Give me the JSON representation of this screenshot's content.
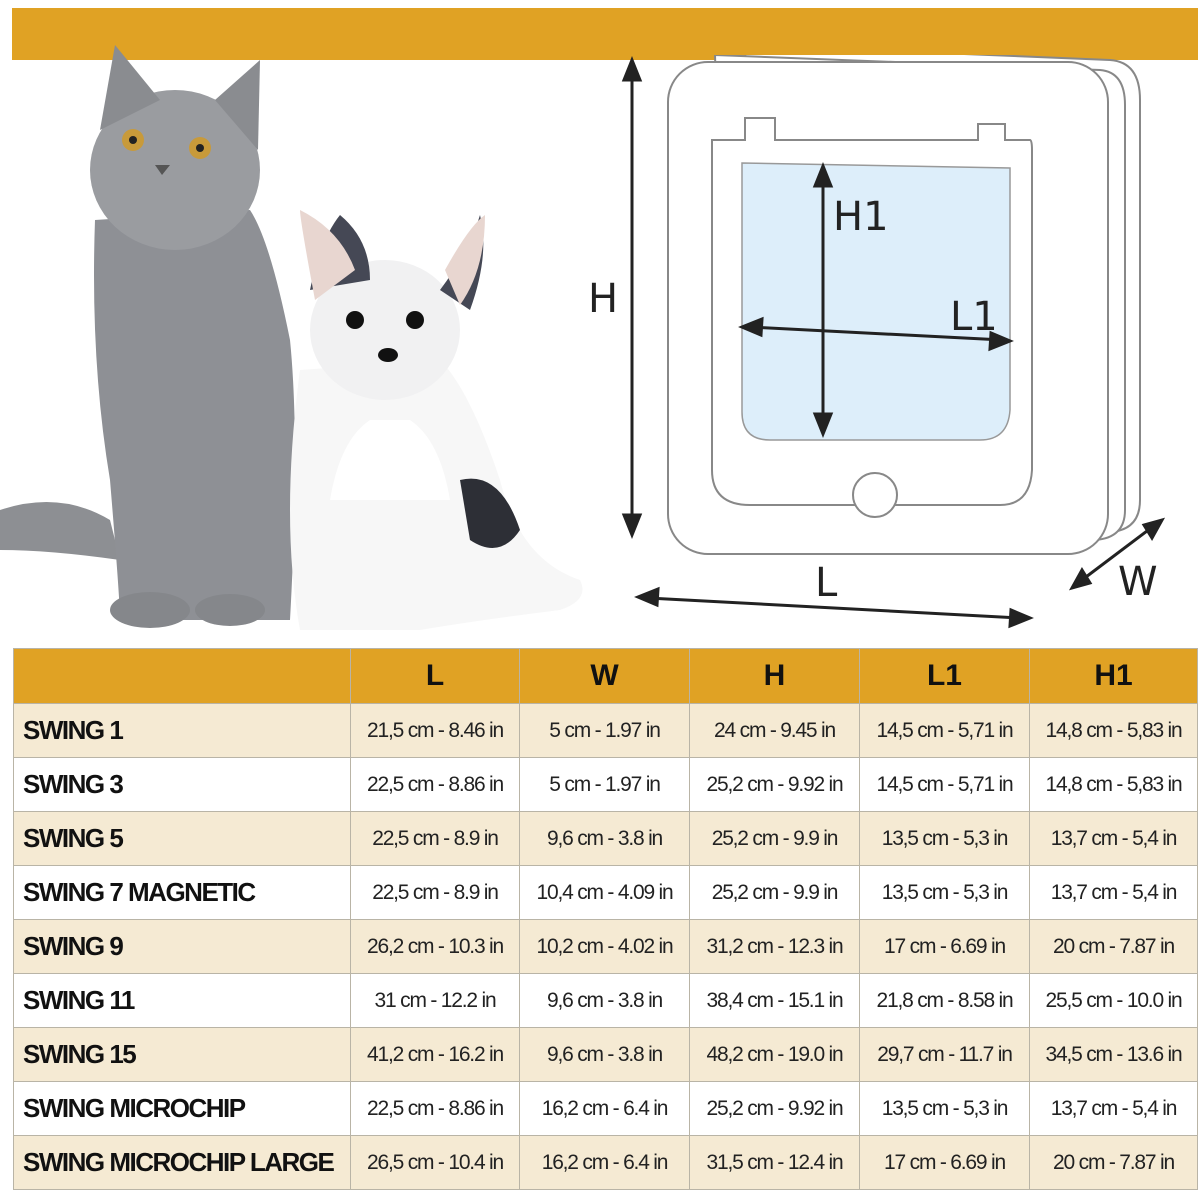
{
  "diagram": {
    "labels": {
      "height": "H",
      "length": "L",
      "width": "W",
      "inner_height": "H1",
      "inner_length": "L1"
    }
  },
  "colors": {
    "accent": "#E0A224",
    "row_alt": "#F5EAD3",
    "flap_window": "#DDEEFA"
  },
  "table": {
    "headers": [
      "",
      "L",
      "W",
      "H",
      "L1",
      "H1"
    ],
    "rows": [
      {
        "name": "SWING 1",
        "values": [
          "21,5 cm - 8.46 in",
          "5 cm - 1.97 in",
          "24 cm - 9.45 in",
          "14,5 cm - 5,71 in",
          "14,8 cm - 5,83 in"
        ]
      },
      {
        "name": "SWING 3",
        "values": [
          "22,5 cm - 8.86 in",
          "5 cm - 1.97 in",
          "25,2 cm - 9.92 in",
          "14,5 cm - 5,71 in",
          "14,8 cm - 5,83 in"
        ]
      },
      {
        "name": "SWING 5",
        "values": [
          "22,5 cm - 8.9 in",
          "9,6 cm - 3.8 in",
          "25,2 cm - 9.9 in",
          "13,5 cm - 5,3 in",
          "13,7 cm - 5,4 in"
        ]
      },
      {
        "name": "SWING 7 MAGNETIC",
        "values": [
          "22,5 cm - 8.9 in",
          "10,4 cm - 4.09 in",
          "25,2 cm - 9.9 in",
          "13,5 cm - 5,3 in",
          "13,7 cm - 5,4 in"
        ]
      },
      {
        "name": "SWING 9",
        "values": [
          "26,2 cm - 10.3 in",
          "10,2 cm - 4.02 in",
          "31,2 cm - 12.3 in",
          "17 cm - 6.69 in",
          "20 cm - 7.87 in"
        ]
      },
      {
        "name": "SWING 11",
        "values": [
          "31 cm - 12.2 in",
          "9,6 cm - 3.8 in",
          "38,4 cm - 15.1 in",
          "21,8 cm - 8.58 in",
          "25,5 cm - 10.0 in"
        ]
      },
      {
        "name": "SWING 15",
        "values": [
          "41,2 cm - 16.2 in",
          "9,6 cm - 3.8 in",
          "48,2 cm - 19.0 in",
          "29,7 cm - 11.7 in",
          "34,5 cm - 13.6 in"
        ]
      },
      {
        "name": "SWING MICROCHIP",
        "values": [
          "22,5 cm - 8.86 in",
          "16,2 cm - 6.4 in",
          "25,2 cm - 9.92 in",
          "13,5 cm - 5,3 in",
          "13,7 cm - 5,4 in"
        ]
      },
      {
        "name": "SWING MICROCHIP LARGE",
        "values": [
          "26,5 cm - 10.4 in",
          "16,2 cm - 6.4 in",
          "31,5 cm - 12.4 in",
          "17 cm - 6.69 in",
          "20 cm - 7.87 in"
        ]
      }
    ]
  }
}
